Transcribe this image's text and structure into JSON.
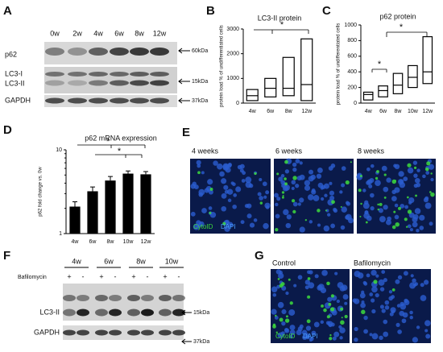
{
  "panel_labels": [
    "A",
    "B",
    "C",
    "D",
    "E",
    "F",
    "G"
  ],
  "panel_a": {
    "lanes": [
      "0w",
      "2w",
      "4w",
      "6w",
      "8w",
      "12w"
    ],
    "bands": [
      "p62",
      "LC3-I",
      "LC3-II",
      "GAPDH"
    ],
    "sizes": [
      "60kDa",
      "15kDa",
      "37kDa"
    ]
  },
  "chart_data": [
    {
      "type": "box",
      "title": "LC3-II protein",
      "ylabel": "protein load % of undifferentiated cells",
      "categories": [
        "4w",
        "6w",
        "8w",
        "12w"
      ],
      "min": [
        100,
        250,
        300,
        100
      ],
      "median": [
        300,
        600,
        600,
        750
      ],
      "max": [
        550,
        1000,
        1850,
        2600
      ],
      "ylim": [
        0,
        3000
      ],
      "yticks": [
        0,
        1000,
        2000,
        3000
      ],
      "annotations": [
        "*"
      ]
    },
    {
      "type": "box",
      "title": "p62 protein",
      "ylabel": "protein load % of undifferentiated cells",
      "categories": [
        "4w",
        "6w",
        "8w",
        "10w",
        "12w"
      ],
      "min": [
        40,
        80,
        120,
        200,
        250
      ],
      "median": [
        110,
        160,
        230,
        330,
        400
      ],
      "max": [
        140,
        220,
        380,
        480,
        850
      ],
      "ylim": [
        0,
        1000
      ],
      "yticks": [
        0,
        200,
        400,
        600,
        800,
        1000
      ],
      "annotations": [
        "*",
        "*"
      ]
    },
    {
      "type": "bar",
      "title": "p62 mRNA expression",
      "ylabel": "p62 fold change vs. 0w",
      "categories": [
        "4w",
        "6w",
        "8w",
        "10w",
        "12w"
      ],
      "values": [
        2.1,
        3.2,
        4.3,
        5.2,
        5.1
      ],
      "errors": [
        0.3,
        0.4,
        0.5,
        0.4,
        0.4
      ],
      "color": "#000000",
      "ylim": [
        1,
        10
      ],
      "yticks": [
        1,
        10
      ],
      "log": true,
      "annotations": [
        "*",
        "*"
      ]
    }
  ],
  "panel_e": {
    "captions": [
      "4 weeks",
      "6 weeks",
      "8 weeks"
    ],
    "stains": [
      "CytoID",
      "DAPI"
    ]
  },
  "panel_f": {
    "lanes": [
      "4w",
      "6w",
      "8w",
      "10w"
    ],
    "treatment": "Bafilomycin",
    "signs": [
      "+",
      "-",
      "+",
      "-",
      "+",
      "-",
      "+",
      "-"
    ],
    "bands": [
      "LC3-II",
      "GAPDH"
    ],
    "sizes": [
      "15kDa",
      "37kDa"
    ]
  },
  "panel_g": {
    "captions": [
      "Control",
      "Bafilomycin"
    ],
    "stains": [
      "CytoID",
      "DAPI"
    ]
  }
}
